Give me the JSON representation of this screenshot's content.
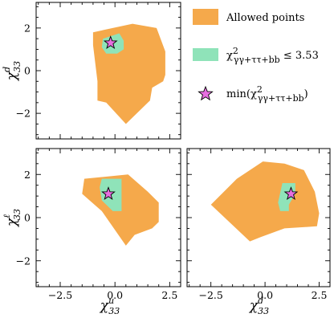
{
  "colors": {
    "allowed": "#f5a94b",
    "fit": "#8fe3b9",
    "star": "#e76ee0",
    "frame": "#000000"
  },
  "legend": {
    "allowed_label": "Allowed points",
    "fit_label": "χ²γγ+ττ+bb ≤ 3.53",
    "min_label": "min(χ²γγ+ττ+bb)",
    "fit_label_parts": {
      "chi": "χ",
      "sup": "2",
      "sub": "γγ+ττ+bb",
      "rest": " ≤ 3.53"
    },
    "min_label_parts": {
      "pre": "min(",
      "chi": "χ",
      "sup": "2",
      "sub": "γγ+ττ+bb",
      "post": ")"
    }
  },
  "axes": {
    "x_ticks": [
      "−2.5",
      "0.0",
      "2.5"
    ],
    "y_ticks": [
      "2",
      "0",
      "−2"
    ],
    "labels": {
      "chi_u": {
        "base": "χ",
        "sup": "u",
        "sub": "33"
      },
      "chi_d": {
        "base": "χ",
        "sup": "d",
        "sub": "33"
      },
      "chi_l": {
        "base": "χ",
        "sup": "ℓ",
        "sub": "33"
      }
    }
  },
  "chart_data": [
    {
      "type": "area",
      "panel": "top-left",
      "xlabel": "",
      "ylabel": "χ^d_33",
      "ylim": [
        -3.2,
        3.2
      ],
      "series": [
        {
          "name": "Allowed points",
          "polygon": [
            [
              -1.0,
              1.8
            ],
            [
              0.8,
              2.2
            ],
            [
              1.9,
              2.0
            ],
            [
              2.3,
              0.9
            ],
            [
              2.3,
              -0.2
            ],
            [
              2.2,
              -0.5
            ],
            [
              1.7,
              -0.8
            ],
            [
              1.6,
              -1.4
            ],
            [
              0.5,
              -2.5
            ],
            [
              -0.4,
              -1.5
            ],
            [
              -0.8,
              -1.4
            ],
            [
              -0.8,
              -0.5
            ],
            [
              -1.0,
              1.2
            ]
          ]
        },
        {
          "name": "χ²γγ+ττ+bb ≤ 3.53",
          "polygon": [
            [
              -0.55,
              1.5
            ],
            [
              0.2,
              1.75
            ],
            [
              0.4,
              1.4
            ],
            [
              0.4,
              1.0
            ],
            [
              0.1,
              0.8
            ],
            [
              -0.4,
              0.8
            ],
            [
              -0.6,
              1.1
            ]
          ]
        },
        {
          "name": "min(χ²γγ+ττ+bb)",
          "points": [
            [
              -0.2,
              1.3
            ]
          ]
        }
      ]
    },
    {
      "type": "area",
      "panel": "bottom-left",
      "xlabel": "χ^u_33",
      "ylabel": "χ^ℓ_33",
      "xlim": [
        -3.6,
        3.0
      ],
      "ylim": [
        -3.2,
        3.2
      ],
      "series": [
        {
          "name": "Allowed points",
          "polygon": [
            [
              -1.4,
              1.8
            ],
            [
              0.6,
              2.0
            ],
            [
              1.5,
              1.2
            ],
            [
              2.0,
              0.7
            ],
            [
              2.0,
              -0.2
            ],
            [
              1.7,
              -0.5
            ],
            [
              0.9,
              -0.8
            ],
            [
              0.5,
              -1.3
            ],
            [
              -0.6,
              0.3
            ],
            [
              -1.5,
              1.1
            ]
          ]
        },
        {
          "name": "χ²γγ+ττ+bb ≤ 3.53",
          "polygon": [
            [
              -0.6,
              1.8
            ],
            [
              0.3,
              1.8
            ],
            [
              0.3,
              0.3
            ],
            [
              -0.1,
              0.3
            ],
            [
              -0.6,
              0.8
            ],
            [
              -0.7,
              1.4
            ]
          ]
        },
        {
          "name": "min(χ²γγ+ττ+bb)",
          "points": [
            [
              -0.3,
              1.1
            ]
          ]
        }
      ]
    },
    {
      "type": "area",
      "panel": "bottom-right",
      "xlabel": "χ^d_33",
      "ylabel": "",
      "xlim": [
        -3.6,
        3.0
      ],
      "ylim": [
        -3.2,
        3.2
      ],
      "series": [
        {
          "name": "Allowed points",
          "polygon": [
            [
              -1.3,
              1.8
            ],
            [
              -0.1,
              2.6
            ],
            [
              0.9,
              2.5
            ],
            [
              1.8,
              2.2
            ],
            [
              2.3,
              1.2
            ],
            [
              2.5,
              0.2
            ],
            [
              2.4,
              -0.4
            ],
            [
              0.9,
              -0.5
            ],
            [
              -0.2,
              -0.9
            ],
            [
              -0.7,
              -1.1
            ],
            [
              -2.5,
              0.6
            ]
          ]
        },
        {
          "name": "χ²γγ+ττ+bb ≤ 3.53",
          "polygon": [
            [
              0.8,
              1.6
            ],
            [
              1.4,
              1.6
            ],
            [
              1.4,
              1.1
            ],
            [
              1.1,
              0.6
            ],
            [
              1.1,
              0.3
            ],
            [
              0.7,
              0.3
            ],
            [
              0.6,
              0.7
            ]
          ]
        },
        {
          "name": "min(χ²γγ+ττ+bb)",
          "points": [
            [
              1.2,
              1.1
            ]
          ]
        }
      ]
    }
  ]
}
